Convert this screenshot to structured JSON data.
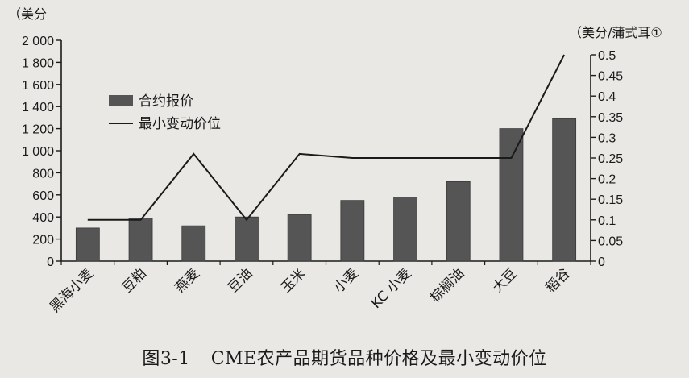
{
  "caption": {
    "number": "图3-1",
    "title": "CME农产品期货品种价格及最小变动价位"
  },
  "chart_data": {
    "type": "bar",
    "categories": [
      "黑海小麦",
      "豆粕",
      "燕麦",
      "豆油",
      "玉米",
      "小麦",
      "KC 小麦",
      "棕榈油",
      "大豆",
      "稻谷"
    ],
    "series": [
      {
        "name": "合约报价",
        "type": "bar",
        "axis": "left",
        "values": [
          300,
          390,
          320,
          400,
          420,
          550,
          580,
          720,
          1200,
          1290
        ]
      },
      {
        "name": "最小变动价位",
        "type": "line",
        "axis": "right",
        "values": [
          0.1,
          0.1,
          0.26,
          0.1,
          0.26,
          0.25,
          0.25,
          0.25,
          0.25,
          0.5
        ]
      }
    ],
    "y_left": {
      "unit_label": "（美分",
      "range": [
        0,
        2000
      ],
      "ticks": [
        0,
        200,
        400,
        600,
        800,
        1000,
        1200,
        1400,
        1600,
        1800,
        2000
      ],
      "tick_labels": [
        "0",
        "200",
        "400",
        "600",
        "800",
        "1 000",
        "1 200",
        "1 400",
        "1 600",
        "1 800",
        "2 000"
      ]
    },
    "y_right": {
      "unit_label": "（美分/蒲式耳①",
      "range": [
        0,
        0.5
      ],
      "ticks": [
        0,
        0.05,
        0.1,
        0.15,
        0.2,
        0.25,
        0.3,
        0.35,
        0.4,
        0.45,
        0.5
      ],
      "tick_labels": [
        "0",
        "0.05",
        "0.1",
        "0.15",
        "0.2",
        "0.25",
        "0.3",
        "0.35",
        "0.4",
        "0.45",
        "0.5"
      ]
    },
    "legend": {
      "position": "upper-left",
      "items": [
        "合约报价",
        "最小变动价位"
      ]
    },
    "grid": false,
    "colors": {
      "bar": "#555555",
      "line": "#1a1a1a",
      "axis": "#1a1a1a"
    }
  }
}
